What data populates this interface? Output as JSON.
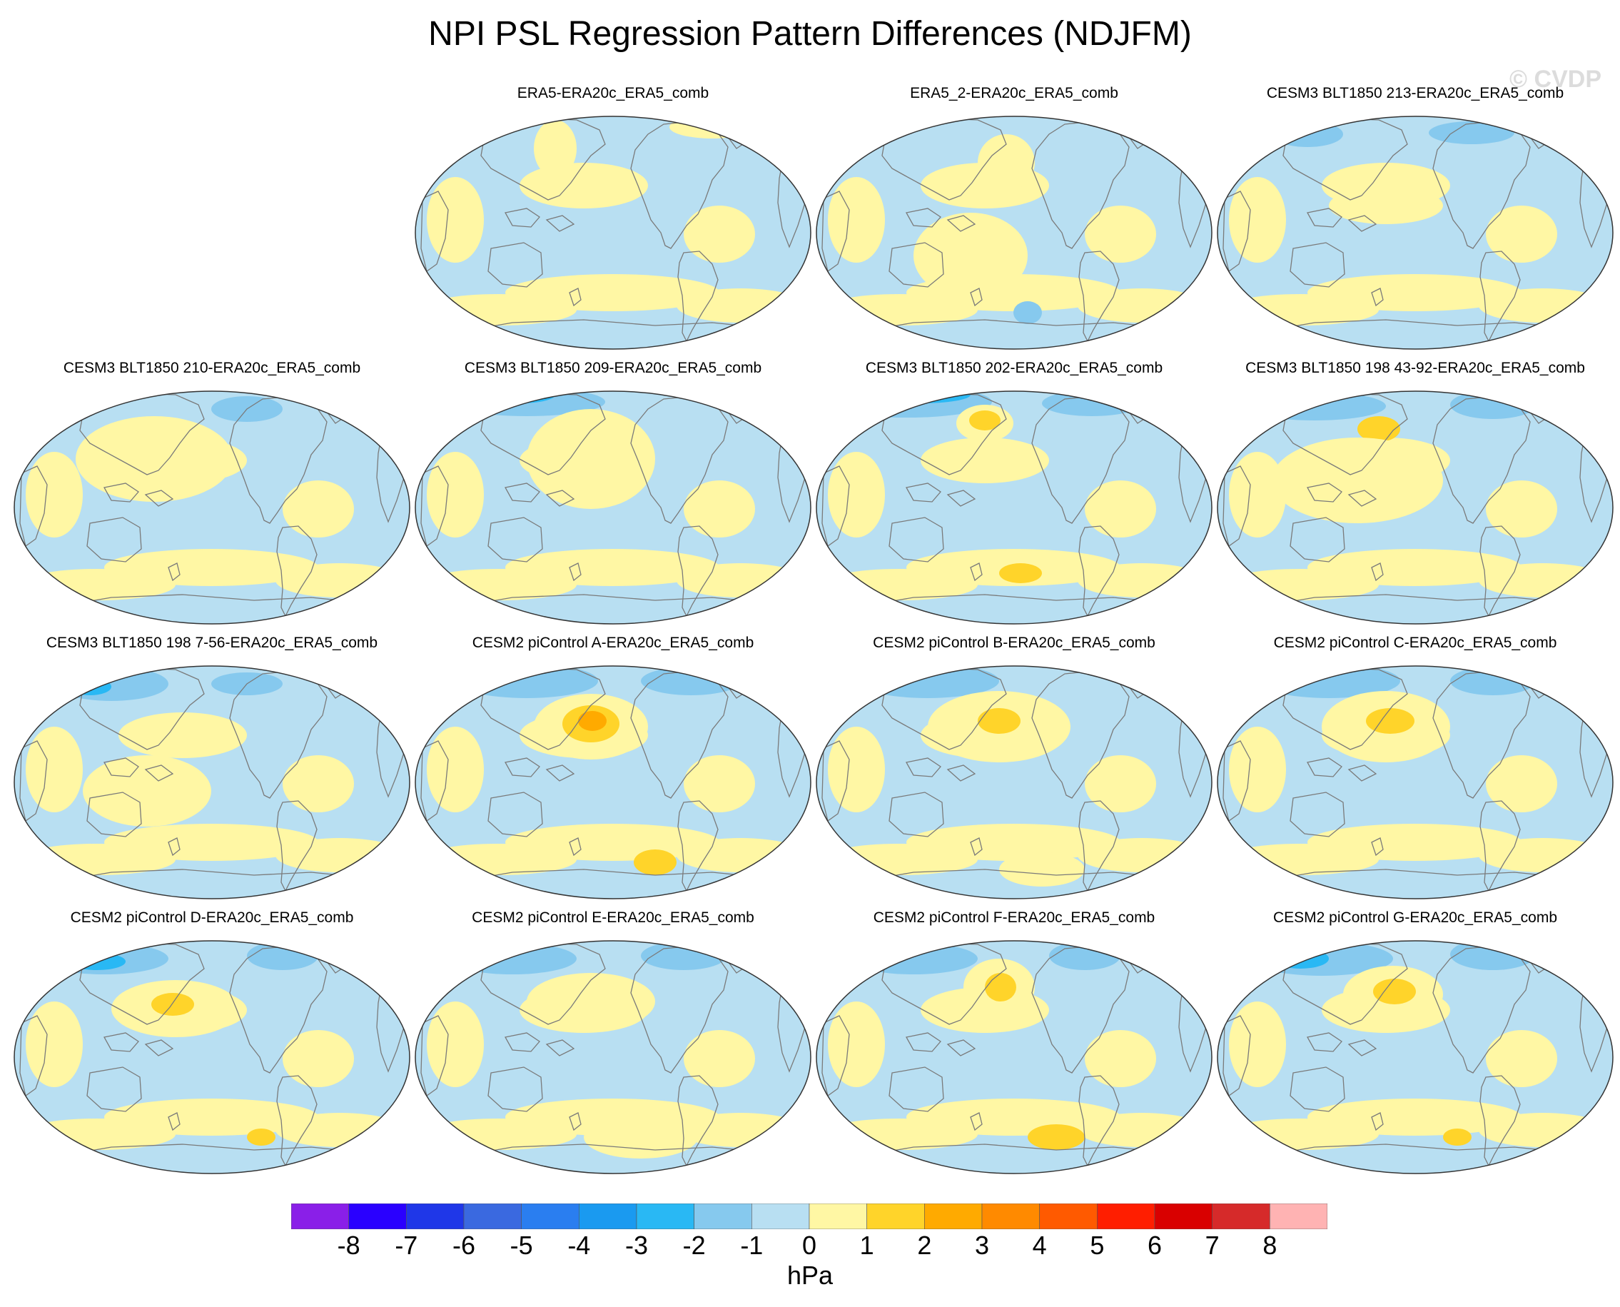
{
  "figure": {
    "title": "NPI PSL Regression Pattern Differences (NDJFM)",
    "watermark": "© CVDP"
  },
  "panels": [
    {
      "title": "",
      "empty": true,
      "variant": 0
    },
    {
      "title": "ERA5-ERA20c_ERA5_comb",
      "variant": 1
    },
    {
      "title": "ERA5_2-ERA20c_ERA5_comb",
      "variant": 2
    },
    {
      "title": "CESM3 BLT1850 213-ERA20c_ERA5_comb",
      "variant": 3
    },
    {
      "title": "CESM3 BLT1850 210-ERA20c_ERA5_comb",
      "variant": 4
    },
    {
      "title": "CESM3 BLT1850 209-ERA20c_ERA5_comb",
      "variant": 5
    },
    {
      "title": "CESM3 BLT1850 202-ERA20c_ERA5_comb",
      "variant": 6
    },
    {
      "title": "CESM3 BLT1850 198 43-92-ERA20c_ERA5_comb",
      "variant": 7
    },
    {
      "title": "CESM3 BLT1850 198 7-56-ERA20c_ERA5_comb",
      "variant": 8
    },
    {
      "title": "CESM2 piControl A-ERA20c_ERA5_comb",
      "variant": 9
    },
    {
      "title": "CESM2 piControl B-ERA20c_ERA5_comb",
      "variant": 10
    },
    {
      "title": "CESM2 piControl C-ERA20c_ERA5_comb",
      "variant": 11
    },
    {
      "title": "CESM2 piControl D-ERA20c_ERA5_comb",
      "variant": 12
    },
    {
      "title": "CESM2 piControl E-ERA20c_ERA5_comb",
      "variant": 13
    },
    {
      "title": "CESM2 piControl F-ERA20c_ERA5_comb",
      "variant": 14
    },
    {
      "title": "CESM2 piControl G-ERA20c_ERA5_comb",
      "variant": 15
    }
  ],
  "colorbar": {
    "units": "hPa",
    "tick_labels": [
      "-8",
      "-7",
      "-6",
      "-5",
      "-4",
      "-3",
      "-2",
      "-1",
      "0",
      "1",
      "2",
      "3",
      "4",
      "5",
      "6",
      "7",
      "8"
    ],
    "colors": [
      "#8a1fe8",
      "#2a00ff",
      "#1f37e8",
      "#3a69e0",
      "#2a7ef0",
      "#1a9af0",
      "#29b8f4",
      "#86c9ee",
      "#b8dff2",
      "#fff7a4",
      "#ffd42a",
      "#ffaa00",
      "#ff8a00",
      "#ff5a00",
      "#ff1e00",
      "#d90000",
      "#d62a2a",
      "#ffb3b3"
    ]
  },
  "map_colors": {
    "neg1": "#b8dff2",
    "neg2": "#86c9ee",
    "neg3": "#29b8f4",
    "pos1": "#fff7a4",
    "pos2": "#ffd42a",
    "pos3": "#ffaa00",
    "coast": "#7a7a7a"
  }
}
